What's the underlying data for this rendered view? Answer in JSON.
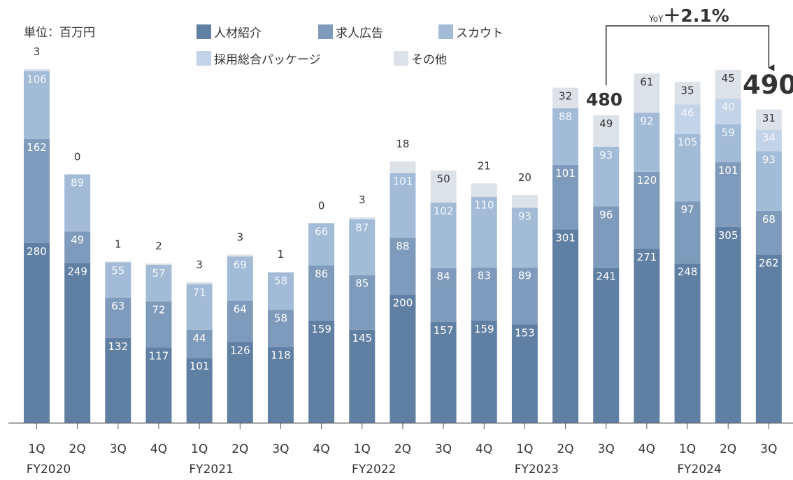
{
  "unit_label": "単位：百万円",
  "legend": [
    {
      "label": "人材紹介",
      "color": "#5f7fa3"
    },
    {
      "label": "求人広告",
      "color": "#7f9bbb"
    },
    {
      "label": "スカウト",
      "color": "#a2bcd8"
    },
    {
      "label": "採用総合パッケージ",
      "color": "#c3d4e9"
    },
    {
      "label": "その他",
      "color": "#dde2e9"
    }
  ],
  "yoy": {
    "prefix": "YoY",
    "value": "＋2.1%"
  },
  "callouts": {
    "prev_total": "480",
    "curr_total": "490"
  },
  "chart_data": {
    "type": "bar",
    "stacked": true,
    "categories": [
      "1Q",
      "2Q",
      "3Q",
      "4Q",
      "1Q",
      "2Q",
      "3Q",
      "4Q",
      "1Q",
      "2Q",
      "3Q",
      "4Q",
      "1Q",
      "2Q",
      "3Q",
      "4Q",
      "1Q",
      "2Q",
      "3Q"
    ],
    "fiscal_years": [
      {
        "label": "FY2020",
        "start": 0
      },
      {
        "label": "FY2021",
        "start": 4
      },
      {
        "label": "FY2022",
        "start": 8
      },
      {
        "label": "FY2023",
        "start": 12
      },
      {
        "label": "FY2024",
        "start": 16
      }
    ],
    "series": [
      {
        "name": "人材紹介",
        "color": "#5f7fa3",
        "values": [
          280,
          249,
          132,
          117,
          101,
          126,
          118,
          159,
          145,
          200,
          157,
          159,
          153,
          301,
          241,
          271,
          248,
          305,
          262
        ]
      },
      {
        "name": "求人広告",
        "color": "#7f9bbb",
        "values": [
          162,
          49,
          63,
          72,
          44,
          64,
          58,
          86,
          85,
          88,
          84,
          83,
          89,
          101,
          96,
          120,
          97,
          101,
          68
        ]
      },
      {
        "name": "スカウト",
        "color": "#a2bcd8",
        "values": [
          106,
          89,
          55,
          57,
          71,
          69,
          58,
          66,
          87,
          101,
          102,
          110,
          93,
          88,
          93,
          92,
          105,
          59,
          93
        ]
      },
      {
        "name": "採用総合パッケージ",
        "color": "#c3d4e9",
        "values": [
          0,
          0,
          0,
          0,
          0,
          0,
          0,
          0,
          0,
          0,
          0,
          0,
          0,
          0,
          0,
          0,
          46,
          40,
          34
        ]
      },
      {
        "name": "その他",
        "color": "#dde2e9",
        "values": [
          3,
          0,
          1,
          2,
          3,
          3,
          1,
          0,
          3,
          18,
          50,
          21,
          20,
          32,
          49,
          61,
          35,
          45,
          31
        ]
      }
    ],
    "ylim": [
      0,
      560
    ],
    "grid": false
  }
}
